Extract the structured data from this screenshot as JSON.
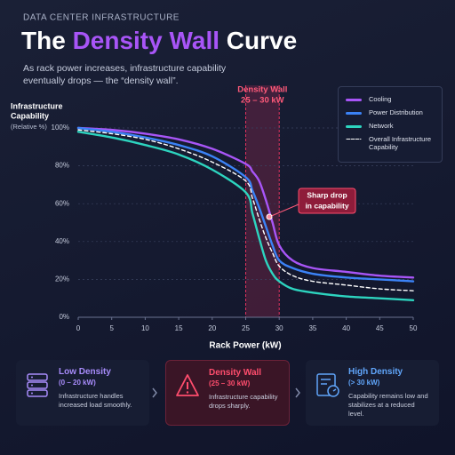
{
  "header": {
    "kicker": "DATA CENTER INFRASTRUCTURE",
    "title_parts": [
      "The ",
      "Density Wall",
      " Curve"
    ],
    "subtitle": [
      "As rack power increases, infrastructure capability",
      "eventually drops — the “density wall”."
    ]
  },
  "chart_data": {
    "type": "line",
    "y_label": [
      "Infrastructure",
      "Capability"
    ],
    "y_sublabel": "(Relative %)",
    "x_label": "Rack Power (kW)",
    "x": [
      0,
      5,
      10,
      15,
      20,
      25,
      26,
      27,
      28,
      29,
      30,
      32,
      35,
      40,
      45,
      50
    ],
    "series": [
      {
        "name": "Cooling",
        "color": "#a855f7",
        "values": [
          100,
          99,
          97,
          94,
          89,
          81,
          77,
          72,
          62,
          50,
          38,
          30,
          26,
          24,
          22,
          21
        ]
      },
      {
        "name": "Power Distribution",
        "color": "#3b82f6",
        "values": [
          100,
          98,
          95,
          91,
          85,
          74,
          67,
          58,
          48,
          38,
          30,
          26,
          23,
          21,
          20,
          19
        ]
      },
      {
        "name": "Network",
        "color": "#2dd4bf",
        "values": [
          98,
          95,
          91,
          86,
          78,
          66,
          55,
          42,
          30,
          23,
          19,
          15,
          13,
          11,
          10,
          9
        ]
      },
      {
        "name": "Overall Infrastructure Capability",
        "color": "#ffffff",
        "dashed": true,
        "values": [
          99,
          97,
          94,
          89,
          82,
          72,
          63,
          52,
          42,
          34,
          27,
          22,
          19,
          17,
          15,
          14
        ]
      }
    ],
    "xlim": [
      0,
      50
    ],
    "xticks": [
      0,
      5,
      10,
      15,
      20,
      25,
      30,
      35,
      40,
      45,
      50
    ],
    "ylim": [
      0,
      100
    ],
    "yticks": [
      {
        "value": 0,
        "label": "0%"
      },
      {
        "value": 20,
        "label": "20%"
      },
      {
        "value": 40,
        "label": "40%"
      },
      {
        "value": 60,
        "label": "60%"
      },
      {
        "value": 80,
        "label": "80%"
      },
      {
        "value": 100,
        "label": "100%"
      }
    ],
    "grid": true,
    "highlight": {
      "range": [
        25,
        30
      ],
      "label": [
        "Density Wall",
        "25 – 30 kW"
      ],
      "color": "#e0335e"
    },
    "annotation": [
      "Sharp drop",
      "in capability"
    ],
    "legend": "upper right"
  },
  "cards": [
    {
      "title": "Low Density",
      "range": "(0 – 20 kW)",
      "text": "Infrastructure handles increased load smoothly."
    },
    {
      "title": "Density Wall",
      "range": "(25 – 30 kW)",
      "text": "Infrastructure capability drops sharply."
    },
    {
      "title": "High Density",
      "range": "(> 30 kW)",
      "text": "Capability remains low and stabilizes at a reduced level."
    }
  ]
}
